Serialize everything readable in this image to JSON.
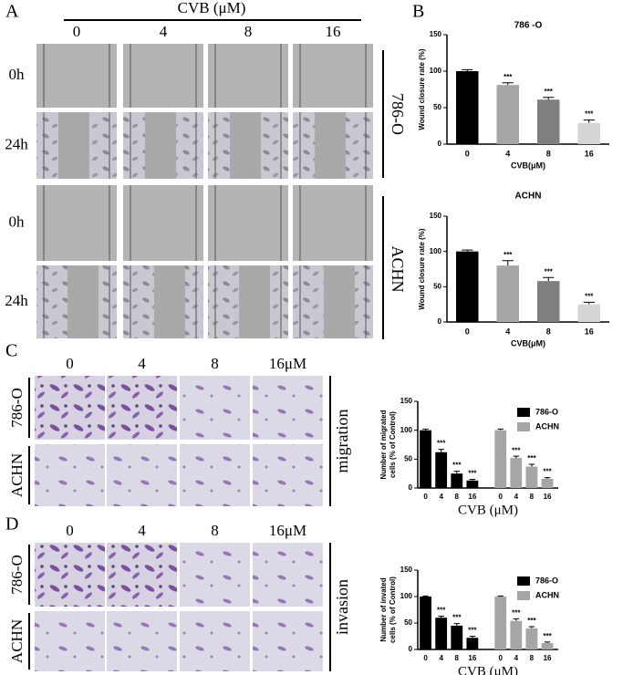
{
  "figure": {
    "panels": [
      "A",
      "B",
      "C",
      "D"
    ],
    "a": {
      "header": "CVB (μM)",
      "columns": [
        "0",
        "4",
        "8",
        "16"
      ],
      "rows": [
        "0h",
        "24h",
        "0h",
        "24h"
      ],
      "groups": [
        "786-O",
        "ACHN"
      ]
    },
    "c": {
      "columns": [
        "0",
        "4",
        "8",
        "16μM"
      ],
      "rows": [
        "786-O",
        "ACHN"
      ],
      "side": "migration"
    },
    "d": {
      "columns": [
        "0",
        "4",
        "8",
        "16μM"
      ],
      "rows": [
        "786-O",
        "ACHN"
      ],
      "side": "invasion"
    }
  },
  "chart_data": [
    {
      "type": "bar",
      "title": "786 -O",
      "y_label": [
        "Wound closure rate (%)"
      ],
      "x_label": "CVB(μM)",
      "categories": [
        "0",
        "4",
        "8",
        "16"
      ],
      "values": [
        100,
        81,
        61,
        29
      ],
      "errors": [
        2,
        3,
        3,
        4
      ],
      "significance": [
        null,
        "***",
        "***",
        "***"
      ],
      "colors": [
        "#000000",
        "#a6a6a6",
        "#7f7f7f",
        "#d6d6d6"
      ],
      "ylim": [
        0,
        150
      ],
      "yticks": [
        0,
        50,
        100,
        150
      ]
    },
    {
      "type": "bar",
      "title": "ACHN",
      "y_label": [
        "Wound closure rate (%)"
      ],
      "x_label": "CVB(μM)",
      "categories": [
        "0",
        "4",
        "8",
        "16"
      ],
      "values": [
        100,
        80,
        58,
        25
      ],
      "errors": [
        2,
        7,
        5,
        3
      ],
      "significance": [
        null,
        "***",
        "***",
        "***"
      ],
      "colors": [
        "#000000",
        "#a6a6a6",
        "#7f7f7f",
        "#d6d6d6"
      ],
      "ylim": [
        0,
        150
      ],
      "yticks": [
        0,
        50,
        100,
        150
      ]
    },
    {
      "type": "grouped_bar",
      "y_label": [
        "Number of migrated",
        "cells (% of Control)"
      ],
      "x_label": "CVB (μM)",
      "categories": [
        "0",
        "4",
        "8",
        "16"
      ],
      "legend": "upper right",
      "series": [
        {
          "name": "786-O",
          "color": "#000000",
          "values": [
            100,
            62,
            25,
            13
          ],
          "errors": [
            2,
            5,
            4,
            2
          ],
          "significance": [
            null,
            "***",
            "***",
            "***"
          ]
        },
        {
          "name": "ACHN",
          "color": "#a6a6a6",
          "values": [
            100,
            52,
            37,
            16
          ],
          "errors": [
            2,
            3,
            4,
            2
          ],
          "significance": [
            null,
            "***",
            "***",
            "***"
          ]
        }
      ],
      "ylim": [
        0,
        150
      ],
      "yticks": [
        0,
        50,
        100,
        150
      ]
    },
    {
      "type": "grouped_bar",
      "y_label": [
        "Number of invated",
        "cells (% of Control)"
      ],
      "x_label": "CVB (μM)",
      "categories": [
        "0",
        "4",
        "8",
        "16"
      ],
      "legend": "upper right",
      "series": [
        {
          "name": "786-O",
          "color": "#000000",
          "values": [
            100,
            60,
            45,
            22
          ],
          "errors": [
            1,
            3,
            4,
            3
          ],
          "significance": [
            null,
            "***",
            "***",
            "***"
          ]
        },
        {
          "name": "ACHN",
          "color": "#a6a6a6",
          "values": [
            100,
            54,
            40,
            12
          ],
          "errors": [
            1,
            4,
            3,
            2
          ],
          "significance": [
            null,
            "***",
            "***",
            "***"
          ]
        }
      ],
      "ylim": [
        0,
        150
      ],
      "yticks": [
        0,
        50,
        100,
        150
      ]
    }
  ]
}
